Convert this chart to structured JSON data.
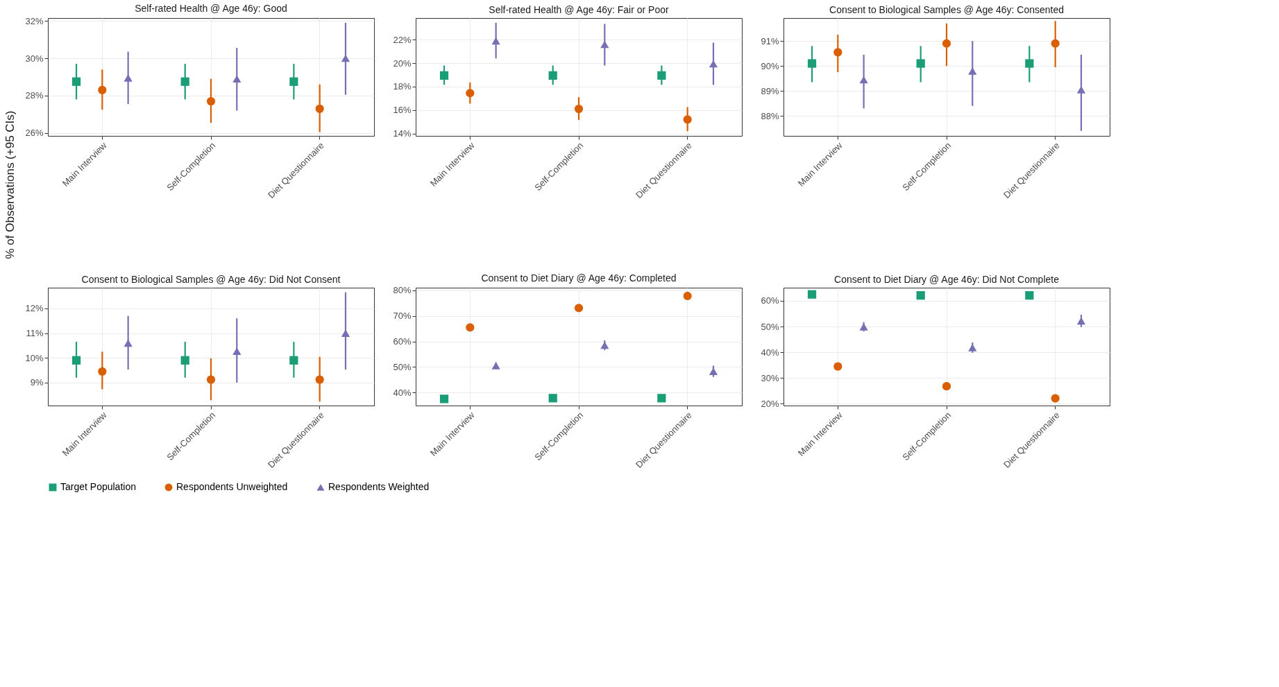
{
  "chart_data": [
    {
      "type": "scatter",
      "title": "Self-rated Health @ Age 46y: Good",
      "ylabel": "% of Observations (+95 CIs)",
      "categories": [
        "Main Interview",
        "Self-Completion",
        "Diet Questionnaire"
      ],
      "ylim": [
        25.85,
        32.15
      ],
      "yticks": [
        {
          "value": 26,
          "label": "26%"
        },
        {
          "value": 28,
          "label": "28%"
        },
        {
          "value": 30,
          "label": "30%"
        },
        {
          "value": 32,
          "label": "32%"
        }
      ],
      "grid": true,
      "legend": "bottom",
      "series": [
        {
          "name": "Target Population",
          "color": "#1b9e77",
          "marker": "square",
          "values": [
            28.75,
            28.75,
            28.75
          ],
          "errors": [
            [
              27.8,
              29.7
            ],
            [
              27.8,
              29.7
            ],
            [
              27.8,
              29.7
            ]
          ]
        },
        {
          "name": "Respondents Unweighted",
          "color": "#d95f02",
          "marker": "circle",
          "values": [
            28.3,
            27.7,
            27.3
          ],
          "errors": [
            [
              27.25,
              29.4
            ],
            [
              26.55,
              28.9
            ],
            [
              26.05,
              28.6
            ]
          ]
        },
        {
          "name": "Respondents Weighted",
          "color": "#7570b3",
          "marker": "triangle",
          "values": [
            28.95,
            28.9,
            30.0
          ],
          "errors": [
            [
              27.55,
              30.35
            ],
            [
              27.2,
              30.55
            ],
            [
              28.05,
              31.9
            ]
          ]
        }
      ]
    },
    {
      "type": "scatter",
      "title": "Self-rated Health @ Age 46y: Fair or Poor",
      "categories": [
        "Main Interview",
        "Self-Completion",
        "Diet Questionnaire"
      ],
      "ylim": [
        13.8,
        23.85
      ],
      "yticks": [
        {
          "value": 14,
          "label": "14%"
        },
        {
          "value": 16,
          "label": "16%"
        },
        {
          "value": 18,
          "label": "18%"
        },
        {
          "value": 20,
          "label": "20%"
        },
        {
          "value": 22,
          "label": "22%"
        }
      ],
      "grid": true,
      "legend": "bottom",
      "series": [
        {
          "name": "Target Population",
          "color": "#1b9e77",
          "marker": "square",
          "values": [
            18.95,
            18.95,
            18.95
          ],
          "errors": [
            [
              18.15,
              19.8
            ],
            [
              18.15,
              19.8
            ],
            [
              18.15,
              19.8
            ]
          ]
        },
        {
          "name": "Respondents Unweighted",
          "color": "#d95f02",
          "marker": "circle",
          "values": [
            17.45,
            16.1,
            15.2
          ],
          "errors": [
            [
              16.55,
              18.35
            ],
            [
              15.15,
              17.1
            ],
            [
              14.2,
              16.25
            ]
          ]
        },
        {
          "name": "Respondents Weighted",
          "color": "#7570b3",
          "marker": "triangle",
          "values": [
            21.9,
            21.6,
            19.95
          ],
          "errors": [
            [
              20.4,
              23.45
            ],
            [
              19.8,
              23.35
            ],
            [
              18.15,
              21.75
            ]
          ]
        }
      ]
    },
    {
      "type": "scatter",
      "title": "Consent to Biological Samples @ Age 46y: Consented",
      "categories": [
        "Main Interview",
        "Self-Completion",
        "Diet Questionnaire"
      ],
      "ylim": [
        87.2,
        91.92
      ],
      "yticks": [
        {
          "value": 88,
          "label": "88%"
        },
        {
          "value": 89,
          "label": "89%"
        },
        {
          "value": 90,
          "label": "90%"
        },
        {
          "value": 91,
          "label": "91%"
        }
      ],
      "grid": true,
      "legend": "bottom",
      "series": [
        {
          "name": "Target Population",
          "color": "#1b9e77",
          "marker": "square",
          "values": [
            90.1,
            90.1,
            90.1
          ],
          "errors": [
            [
              89.35,
              90.8
            ],
            [
              89.35,
              90.8
            ],
            [
              89.35,
              90.8
            ]
          ]
        },
        {
          "name": "Respondents Unweighted",
          "color": "#d95f02",
          "marker": "circle",
          "values": [
            90.55,
            90.9,
            90.9
          ],
          "errors": [
            [
              89.75,
              91.25
            ],
            [
              90.0,
              91.7
            ],
            [
              89.95,
              91.8
            ]
          ]
        },
        {
          "name": "Respondents Weighted",
          "color": "#7570b3",
          "marker": "triangle",
          "values": [
            89.45,
            89.8,
            89.05
          ],
          "errors": [
            [
              88.3,
              90.45
            ],
            [
              88.4,
              91.0
            ],
            [
              87.4,
              90.45
            ]
          ]
        }
      ]
    },
    {
      "type": "scatter",
      "title": "Consent to Biological Samples @ Age 46y: Did Not Consent",
      "categories": [
        "Main Interview",
        "Self-Completion",
        "Diet Questionnaire"
      ],
      "ylim": [
        8.07,
        12.84
      ],
      "yticks": [
        {
          "value": 9,
          "label": "9%"
        },
        {
          "value": 10,
          "label": "10%"
        },
        {
          "value": 11,
          "label": "11%"
        },
        {
          "value": 12,
          "label": "12%"
        }
      ],
      "grid": true,
      "legend": "bottom",
      "series": [
        {
          "name": "Target Population",
          "color": "#1b9e77",
          "marker": "square",
          "values": [
            9.9,
            9.9,
            9.9
          ],
          "errors": [
            [
              9.2,
              10.65
            ],
            [
              9.2,
              10.65
            ],
            [
              9.2,
              10.65
            ]
          ]
        },
        {
          "name": "Respondents Unweighted",
          "color": "#d95f02",
          "marker": "circle",
          "values": [
            9.45,
            9.12,
            9.12
          ],
          "errors": [
            [
              8.73,
              10.25
            ],
            [
              8.29,
              9.98
            ],
            [
              8.23,
              10.04
            ]
          ]
        },
        {
          "name": "Respondents Weighted",
          "color": "#7570b3",
          "marker": "triangle",
          "values": [
            10.6,
            10.27,
            11.0
          ],
          "errors": [
            [
              9.53,
              11.7
            ],
            [
              9.0,
              11.6
            ],
            [
              9.53,
              12.65
            ]
          ]
        }
      ]
    },
    {
      "type": "scatter",
      "title": "Consent to Diet Diary @ Age 46y: Completed",
      "categories": [
        "Main Interview",
        "Self-Completion",
        "Diet Questionnaire"
      ],
      "ylim": [
        34.9,
        81.05
      ],
      "yticks": [
        {
          "value": 40,
          "label": "40%"
        },
        {
          "value": 50,
          "label": "50%"
        },
        {
          "value": 60,
          "label": "60%"
        },
        {
          "value": 70,
          "label": "70%"
        },
        {
          "value": 80,
          "label": "80%"
        }
      ],
      "grid": true,
      "legend": "bottom",
      "series": [
        {
          "name": "Target Population",
          "color": "#1b9e77",
          "marker": "square",
          "values": [
            37.5,
            37.8,
            37.8
          ]
        },
        {
          "name": "Respondents Unweighted",
          "color": "#d95f02",
          "marker": "circle",
          "values": [
            65.5,
            73.1,
            77.8
          ]
        },
        {
          "name": "Respondents Weighted",
          "color": "#7570b3",
          "marker": "triangle",
          "values": [
            50.5,
            58.5,
            48.3
          ],
          "errors": [
            [
              49.2,
              51.8
            ],
            [
              56.6,
              60.4
            ],
            [
              46.1,
              50.5
            ]
          ]
        }
      ]
    },
    {
      "type": "scatter",
      "title": "Consent to Diet Diary @ Age 46y: Did Not Complete",
      "categories": [
        "Main Interview",
        "Self-Completion",
        "Diet Questionnaire"
      ],
      "ylim": [
        19.3,
        65.1
      ],
      "yticks": [
        {
          "value": 20,
          "label": "20%"
        },
        {
          "value": 30,
          "label": "30%"
        },
        {
          "value": 40,
          "label": "40%"
        },
        {
          "value": 50,
          "label": "50%"
        },
        {
          "value": 60,
          "label": "60%"
        }
      ],
      "grid": true,
      "legend": "bottom",
      "series": [
        {
          "name": "Target Population",
          "color": "#1b9e77",
          "marker": "square",
          "values": [
            62.5,
            62.1,
            62.1
          ]
        },
        {
          "name": "Respondents Unweighted",
          "color": "#d95f02",
          "marker": "circle",
          "values": [
            34.5,
            26.8,
            22.1
          ]
        },
        {
          "name": "Respondents Weighted",
          "color": "#7570b3",
          "marker": "triangle",
          "values": [
            49.9,
            41.8,
            52.2
          ],
          "errors": [
            [
              48.1,
              51.7
            ],
            [
              39.8,
              43.8
            ],
            [
              49.8,
              54.6
            ]
          ]
        }
      ]
    }
  ]
}
